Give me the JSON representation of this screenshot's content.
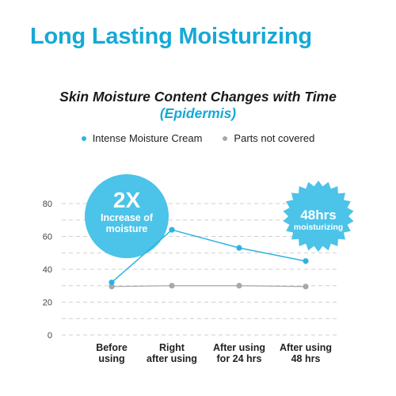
{
  "headline": "Long Lasting Moisturizing",
  "chart_data": {
    "type": "line",
    "title": "Skin Moisture Content Changes with Time",
    "subtitle": "(Epidermis)",
    "categories_lines": [
      [
        "Before",
        "using"
      ],
      [
        "Right",
        "after using"
      ],
      [
        "After using",
        "for 24 hrs"
      ],
      [
        "After using",
        "48 hrs"
      ]
    ],
    "categories": [
      "Before using",
      "Right after using",
      "After using for 24 hrs",
      "After using 48 hrs"
    ],
    "ylim": [
      0,
      80
    ],
    "yticks": [
      0,
      20,
      40,
      60,
      80
    ],
    "grid": true,
    "legend_position": "top-center",
    "series": [
      {
        "name": "Intense Moisture Cream",
        "color": "#2eb3e0",
        "values": [
          32,
          64,
          53,
          45
        ]
      },
      {
        "name": "Parts not covered",
        "color": "#a8a8a8",
        "values": [
          29.5,
          30,
          30,
          29.5
        ]
      }
    ]
  },
  "badges": {
    "left": {
      "big": "2X",
      "line1": "Increase of",
      "line2": "moisture",
      "color": "#4cc3e8"
    },
    "right": {
      "big": "48hrs",
      "line1": "moisturizing",
      "color": "#4cc3e8"
    }
  }
}
